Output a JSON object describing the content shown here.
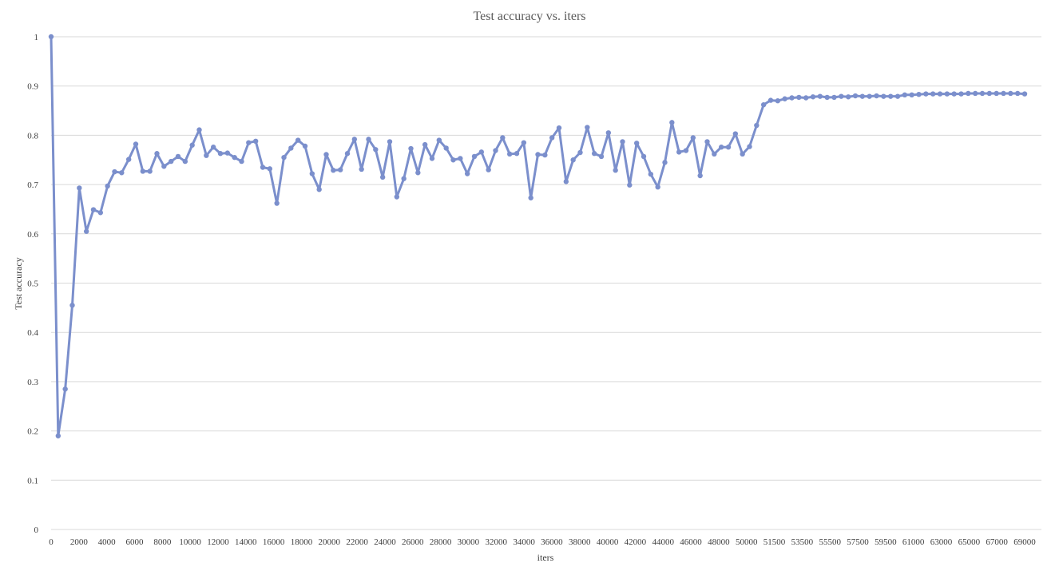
{
  "chart_data": {
    "type": "line",
    "title": "Test accuracy vs. iters",
    "xlabel": "iters",
    "ylabel": "Test accuracy",
    "ylim": [
      0,
      1
    ],
    "y_ticks": [
      "0",
      "0.1",
      "0.2",
      "0.3",
      "0.4",
      "0.5",
      "0.6",
      "0.7",
      "0.8",
      "0.9",
      "1"
    ],
    "x_tick_labels": [
      "0",
      "2000",
      "4000",
      "6000",
      "8000",
      "10000",
      "12000",
      "14000",
      "16000",
      "18000",
      "20000",
      "22000",
      "24000",
      "26000",
      "28000",
      "30000",
      "32000",
      "34000",
      "36000",
      "38000",
      "40000",
      "42000",
      "44000",
      "46000",
      "48000",
      "50000",
      "51500",
      "53500",
      "55500",
      "57500",
      "59500",
      "61000",
      "63000",
      "65000",
      "67000",
      "69000"
    ],
    "grid": true,
    "legend": "none",
    "color": "#7b8fcc",
    "series": [
      {
        "values": [
          1.0,
          0.19,
          0.285,
          0.455,
          0.693,
          0.605,
          0.649,
          0.643,
          0.697,
          0.726,
          0.724,
          0.751,
          0.782,
          0.727,
          0.727,
          0.763,
          0.737,
          0.747,
          0.757,
          0.747,
          0.78,
          0.811,
          0.759,
          0.776,
          0.763,
          0.764,
          0.755,
          0.747,
          0.785,
          0.788,
          0.735,
          0.732,
          0.662,
          0.755,
          0.774,
          0.79,
          0.778,
          0.722,
          0.69,
          0.761,
          0.729,
          0.73,
          0.763,
          0.792,
          0.731,
          0.792,
          0.771,
          0.715,
          0.787,
          0.675,
          0.712,
          0.773,
          0.724,
          0.781,
          0.753,
          0.79,
          0.774,
          0.75,
          0.753,
          0.722,
          0.757,
          0.766,
          0.73,
          0.769,
          0.795,
          0.762,
          0.763,
          0.785,
          0.673,
          0.761,
          0.76,
          0.795,
          0.815,
          0.706,
          0.75,
          0.765,
          0.816,
          0.763,
          0.757,
          0.805,
          0.729,
          0.787,
          0.699,
          0.784,
          0.757,
          0.721,
          0.695,
          0.745,
          0.826,
          0.766,
          0.769,
          0.795,
          0.718,
          0.787,
          0.762,
          0.776,
          0.776,
          0.803,
          0.762,
          0.777,
          0.82,
          0.862,
          0.871,
          0.87,
          0.874,
          0.876,
          0.877,
          0.876,
          0.878,
          0.879,
          0.877,
          0.877,
          0.879,
          0.878,
          0.88,
          0.879,
          0.879,
          0.88,
          0.879,
          0.879,
          0.879,
          0.882,
          0.882,
          0.883,
          0.884,
          0.884,
          0.884,
          0.884,
          0.884,
          0.884,
          0.885,
          0.885,
          0.885,
          0.885,
          0.885,
          0.885,
          0.885,
          0.885,
          0.884
        ]
      }
    ]
  }
}
